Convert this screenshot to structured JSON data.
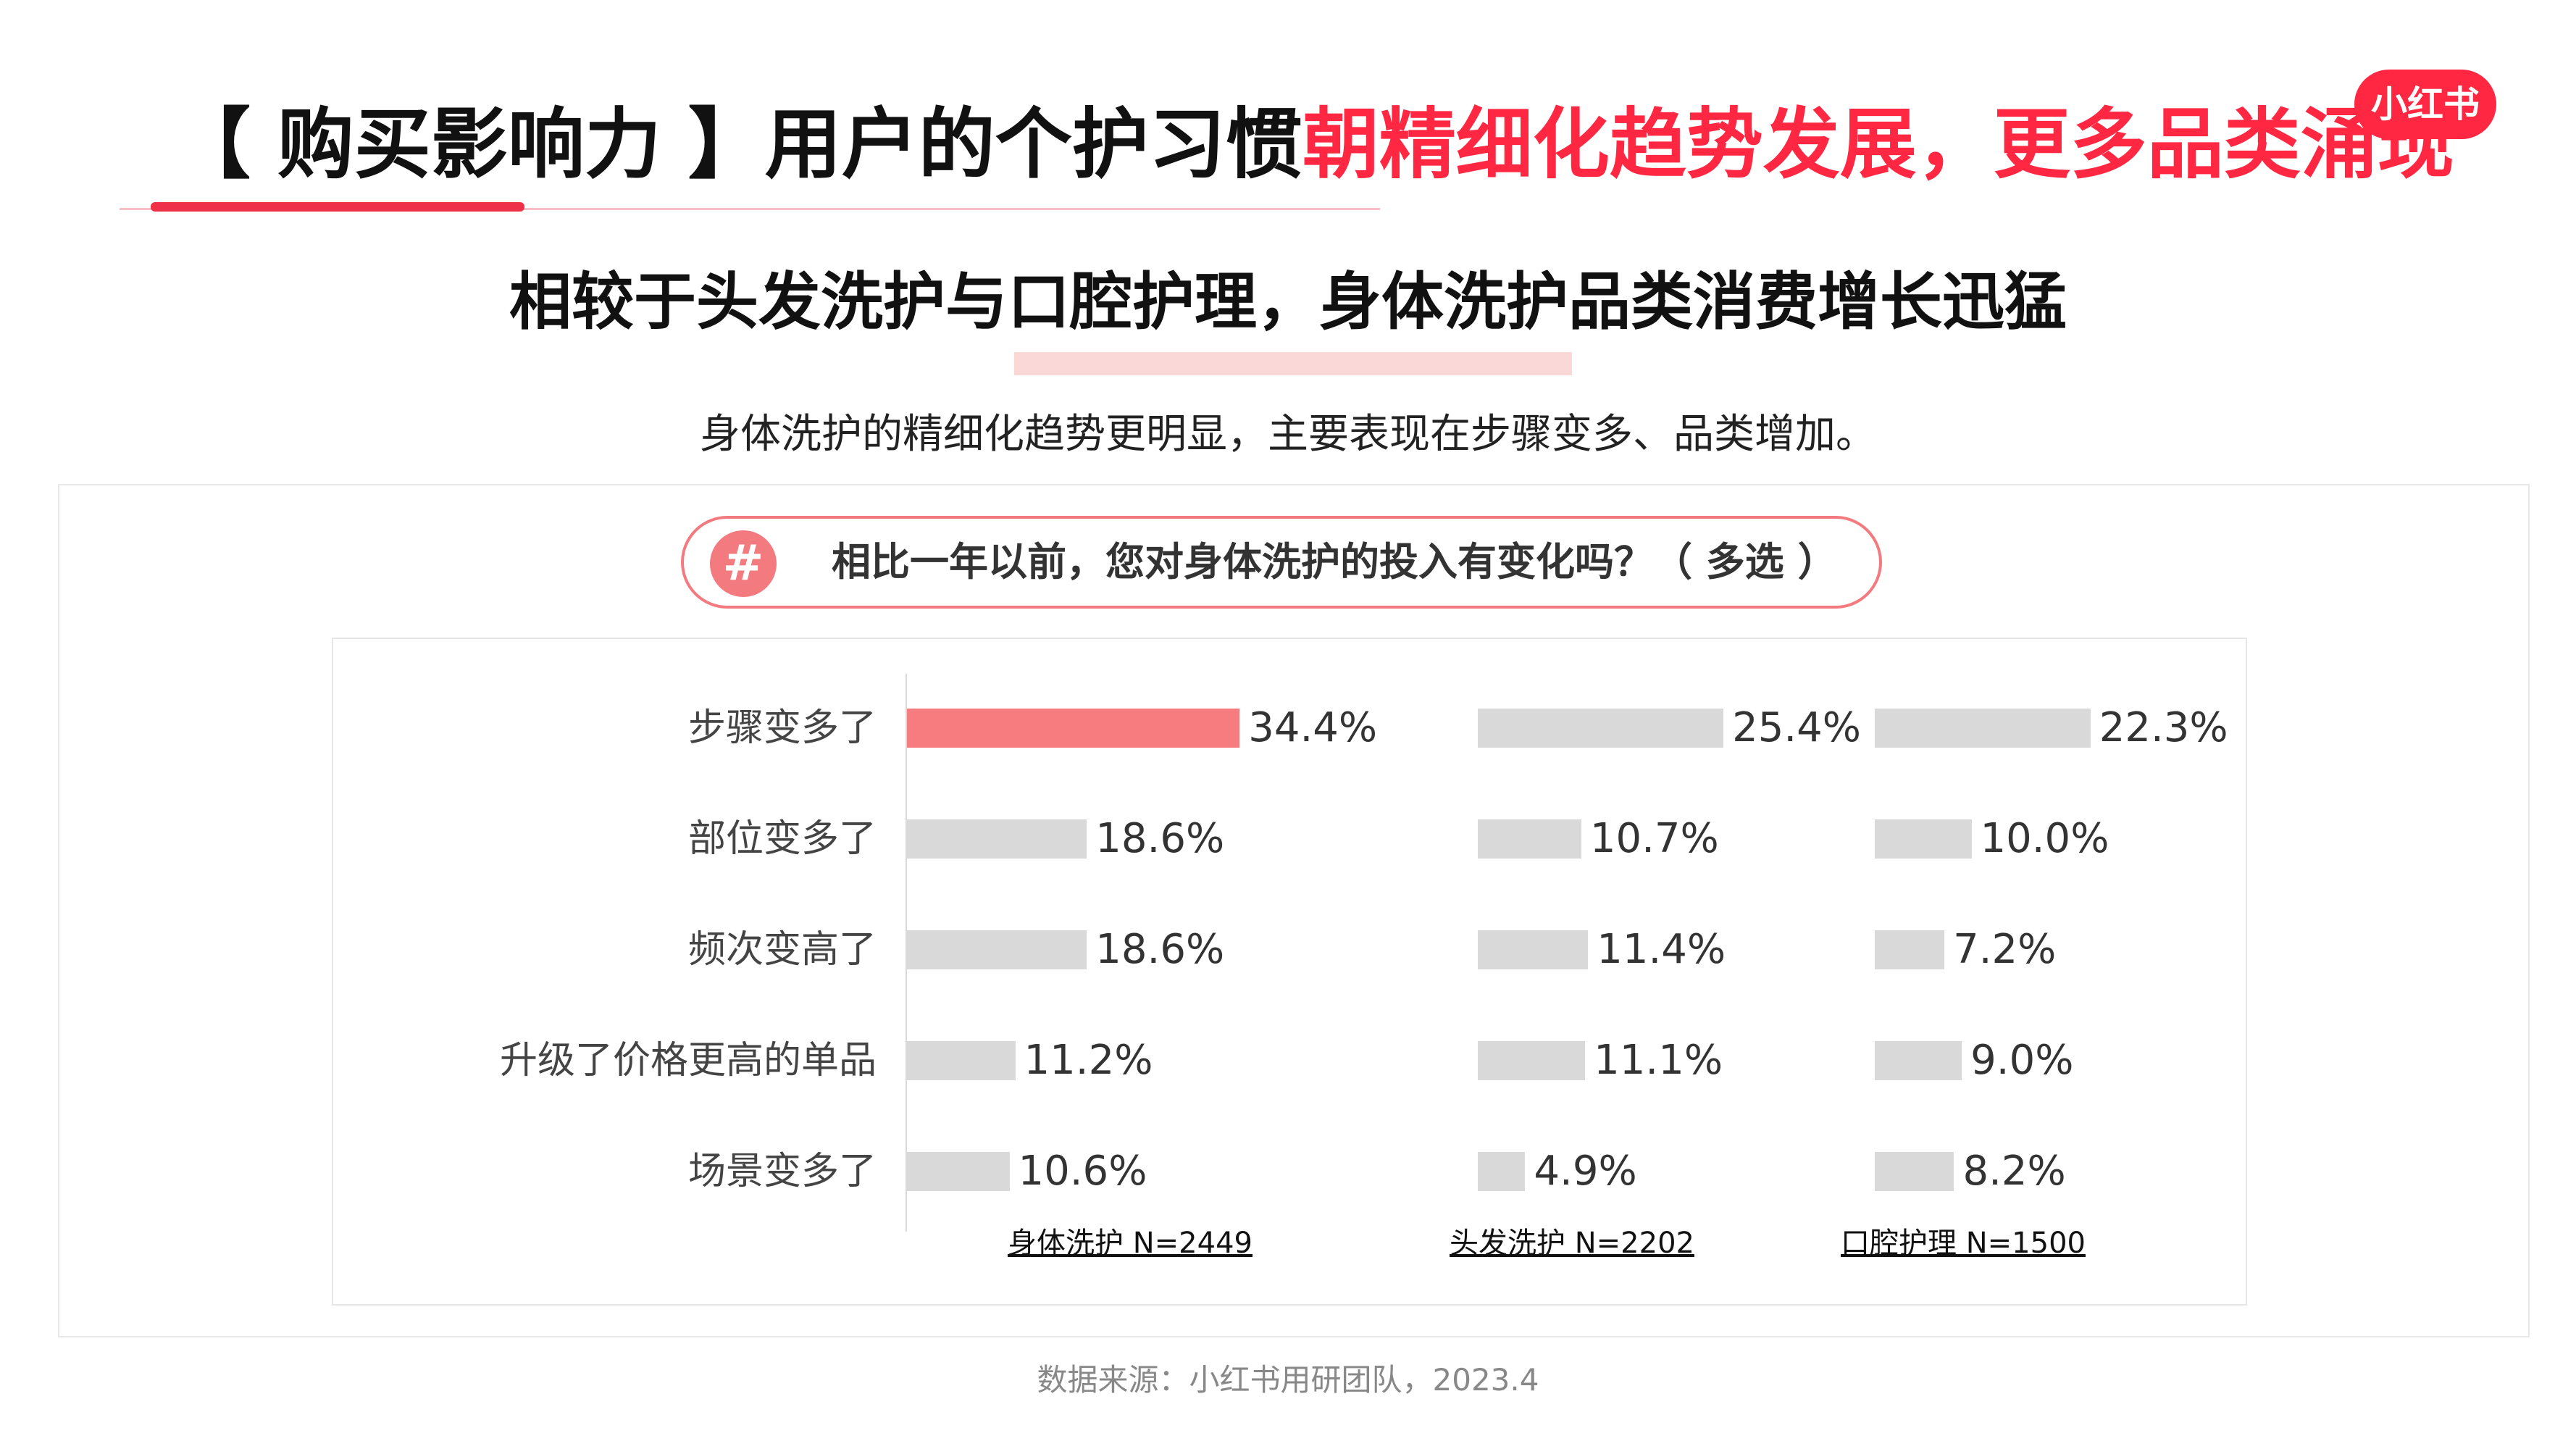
{
  "header": {
    "title_black": "【 购买影响力 】用户的个护习惯",
    "title_red": "朝精细化趋势发展，更多品类涌现",
    "logo": "小红书",
    "accent_color": "#ff2741"
  },
  "subtitle": "相较于头发洗护与口腔护理，身体洗护品类消费增长迅猛",
  "description": "身体洗护的精细化趋势更明显，主要表现在步骤变多、品类增加。",
  "question": {
    "icon": "#",
    "text": "相比一年以前，您对身体洗护的投入有变化吗？（ 多选 ）"
  },
  "chart_data": {
    "type": "bar",
    "orientation": "horizontal",
    "categories": [
      "步骤变多了",
      "部位变多了",
      "频次变高了",
      "升级了价格更高的单品",
      "场景变多了"
    ],
    "series": [
      {
        "name": "身体洗护 N=2449",
        "values": [
          34.4,
          18.6,
          18.6,
          11.2,
          10.6
        ],
        "labels": [
          "34.4%",
          "18.6%",
          "18.6%",
          "11.2%",
          "10.6%"
        ],
        "color": "#f77c80",
        "highlight_color": "#f77c80",
        "base_color": "#d9d9d9"
      },
      {
        "name": "头发洗护 N=2202",
        "values": [
          25.4,
          10.7,
          11.4,
          11.1,
          4.9
        ],
        "labels": [
          "25.4%",
          "10.7%",
          "11.4%",
          "11.1%",
          "4.9%"
        ],
        "color": "#d9d9d9"
      },
      {
        "name": "口腔护理 N=1500",
        "values": [
          22.3,
          10.0,
          7.2,
          9.0,
          8.2
        ],
        "labels": [
          "22.3%",
          "10.0%",
          "7.2%",
          "9.0%",
          "8.2%"
        ],
        "color": "#d9d9d9"
      }
    ],
    "unit": "%"
  },
  "source": "数据来源：小红书用研团队，2023.4"
}
